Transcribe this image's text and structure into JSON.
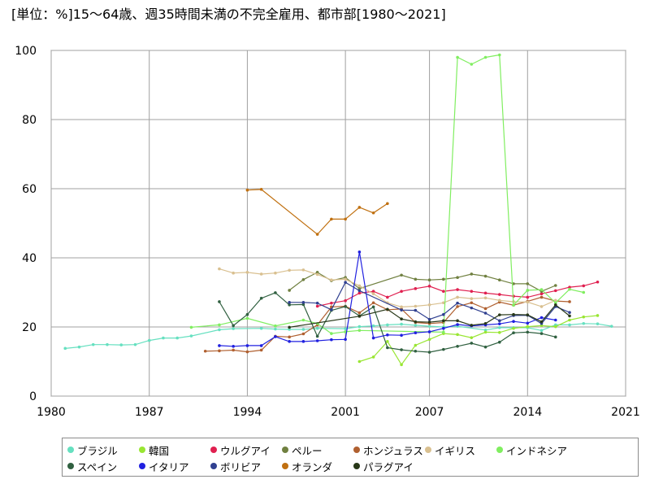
{
  "chart_data": {
    "type": "line",
    "title": "[単位：%]15～64歳、週35時間未満の不完全雇用、都市部[1980～2021]",
    "xlabel": "",
    "ylabel": "",
    "xlim": [
      1980,
      2021
    ],
    "ylim": [
      0,
      100
    ],
    "x_ticks": [
      1980,
      1987,
      1994,
      2001,
      2007,
      2014,
      2021
    ],
    "y_ticks": [
      0,
      20,
      40,
      60,
      80,
      100
    ],
    "grid": true,
    "legend_position": "bottom",
    "series": [
      {
        "name": "ブラジル",
        "color": "#66e0c0",
        "points": [
          [
            1981,
            13.8
          ],
          [
            1982,
            14.2
          ],
          [
            1983,
            14.9
          ],
          [
            1984,
            14.9
          ],
          [
            1985,
            14.8
          ],
          [
            1986,
            14.9
          ],
          [
            1987,
            16.1
          ],
          [
            1988,
            16.8
          ],
          [
            1989,
            16.8
          ],
          [
            1990,
            17.4
          ],
          [
            1992,
            19.2
          ],
          [
            1993,
            19.5
          ],
          [
            1995,
            19.6
          ],
          [
            1996,
            19.4
          ],
          [
            1997,
            19.3
          ],
          [
            1998,
            19.3
          ],
          [
            1999,
            19.6
          ],
          [
            2001,
            19.5
          ],
          [
            2002,
            20.1
          ],
          [
            2003,
            20.3
          ],
          [
            2004,
            20.6
          ],
          [
            2005,
            20.8
          ],
          [
            2006,
            20.5
          ],
          [
            2007,
            20.2
          ],
          [
            2008,
            20.0
          ],
          [
            2009,
            20.2
          ],
          [
            2011,
            19.1
          ],
          [
            2012,
            19.8
          ],
          [
            2013,
            19.8
          ],
          [
            2014,
            19.8
          ],
          [
            2015,
            19.0
          ],
          [
            2016,
            20.6
          ],
          [
            2017,
            20.6
          ],
          [
            2018,
            21.0
          ],
          [
            2019,
            20.9
          ],
          [
            2020,
            20.2
          ]
        ]
      },
      {
        "name": "韓国",
        "color": "#99e633",
        "points": [
          [
            2002,
            10.0
          ],
          [
            2003,
            11.3
          ],
          [
            2004,
            15.8
          ],
          [
            2005,
            9.1
          ],
          [
            2006,
            14.7
          ],
          [
            2007,
            16.4
          ],
          [
            2008,
            18.1
          ],
          [
            2009,
            17.8
          ],
          [
            2010,
            16.9
          ],
          [
            2011,
            18.5
          ],
          [
            2012,
            18.4
          ],
          [
            2013,
            19.6
          ],
          [
            2014,
            20.1
          ],
          [
            2015,
            20.4
          ],
          [
            2016,
            20.1
          ],
          [
            2017,
            22.0
          ],
          [
            2018,
            22.9
          ],
          [
            2019,
            23.3
          ]
        ]
      },
      {
        "name": "ウルグアイ",
        "color": "#e02050",
        "points": [
          [
            1999,
            26.0
          ],
          [
            2000,
            26.9
          ],
          [
            2001,
            27.6
          ],
          [
            2002,
            29.8
          ],
          [
            2003,
            30.3
          ],
          [
            2004,
            28.6
          ],
          [
            2005,
            30.3
          ],
          [
            2006,
            31.1
          ],
          [
            2007,
            31.8
          ],
          [
            2008,
            30.3
          ],
          [
            2009,
            30.8
          ],
          [
            2010,
            30.3
          ],
          [
            2011,
            29.8
          ],
          [
            2012,
            29.4
          ],
          [
            2013,
            28.9
          ],
          [
            2014,
            28.6
          ],
          [
            2015,
            29.6
          ],
          [
            2016,
            30.5
          ],
          [
            2017,
            31.5
          ],
          [
            2018,
            31.9
          ],
          [
            2019,
            33.0
          ]
        ]
      },
      {
        "name": "ペルー",
        "color": "#708040",
        "points": [
          [
            1997,
            30.6
          ],
          [
            1998,
            33.7
          ],
          [
            1999,
            35.8
          ],
          [
            2000,
            33.4
          ],
          [
            2001,
            34.3
          ],
          [
            2002,
            31.1
          ],
          [
            2005,
            35.0
          ],
          [
            2006,
            33.8
          ],
          [
            2007,
            33.6
          ],
          [
            2008,
            33.8
          ],
          [
            2009,
            34.3
          ],
          [
            2010,
            35.3
          ],
          [
            2011,
            34.7
          ],
          [
            2012,
            33.6
          ],
          [
            2013,
            32.5
          ],
          [
            2014,
            32.5
          ],
          [
            2015,
            30.3
          ],
          [
            2016,
            32.0
          ]
        ]
      },
      {
        "name": "ホンジュラス",
        "color": "#b06030",
        "points": [
          [
            1991,
            13.0
          ],
          [
            1992,
            13.1
          ],
          [
            1993,
            13.3
          ],
          [
            1994,
            12.8
          ],
          [
            1995,
            13.3
          ],
          [
            1996,
            17.3
          ],
          [
            1997,
            17.1
          ],
          [
            1998,
            18.0
          ],
          [
            1999,
            20.6
          ],
          [
            2000,
            25.8
          ],
          [
            2001,
            26.0
          ],
          [
            2002,
            24.1
          ],
          [
            2003,
            27.0
          ],
          [
            2004,
            25.0
          ],
          [
            2005,
            25.2
          ],
          [
            2006,
            21.3
          ],
          [
            2007,
            21.0
          ],
          [
            2008,
            21.3
          ],
          [
            2009,
            25.9
          ],
          [
            2010,
            27.0
          ],
          [
            2011,
            25.3
          ],
          [
            2012,
            27.2
          ],
          [
            2013,
            26.3
          ],
          [
            2014,
            27.4
          ],
          [
            2015,
            28.6
          ],
          [
            2016,
            27.5
          ],
          [
            2017,
            27.3
          ]
        ]
      },
      {
        "name": "イギリス",
        "color": "#d9c090",
        "points": [
          [
            1992,
            36.8
          ],
          [
            1993,
            35.6
          ],
          [
            1994,
            35.8
          ],
          [
            1995,
            35.3
          ],
          [
            1996,
            35.6
          ],
          [
            1997,
            36.4
          ],
          [
            1998,
            36.5
          ],
          [
            1999,
            35.2
          ],
          [
            2000,
            33.6
          ],
          [
            2001,
            33.8
          ],
          [
            2002,
            31.9
          ],
          [
            2003,
            29.6
          ],
          [
            2004,
            27.0
          ],
          [
            2005,
            25.8
          ],
          [
            2006,
            26.0
          ],
          [
            2007,
            26.4
          ],
          [
            2008,
            27.0
          ],
          [
            2009,
            28.6
          ],
          [
            2010,
            28.2
          ],
          [
            2011,
            28.4
          ],
          [
            2012,
            27.7
          ],
          [
            2013,
            27.3
          ],
          [
            2014,
            27.2
          ],
          [
            2015,
            25.9
          ],
          [
            2016,
            27.7
          ]
        ]
      },
      {
        "name": "インドネシア",
        "color": "#80ee60",
        "points": [
          [
            1990,
            19.9
          ],
          [
            1992,
            20.6
          ],
          [
            1994,
            22.5
          ],
          [
            1996,
            20.3
          ],
          [
            1998,
            22.0
          ],
          [
            1999,
            21.0
          ],
          [
            2000,
            18.1
          ],
          [
            2001,
            18.6
          ],
          [
            2002,
            19.0
          ],
          [
            2008,
            18.5
          ],
          [
            2009,
            98.0
          ],
          [
            2010,
            96.0
          ],
          [
            2011,
            98.0
          ],
          [
            2012,
            98.7
          ],
          [
            2013,
            26.3
          ],
          [
            2014,
            30.6
          ],
          [
            2015,
            30.8
          ],
          [
            2016,
            27.0
          ],
          [
            2017,
            30.9
          ],
          [
            2018,
            30.0
          ]
        ]
      },
      {
        "name": "スペイン",
        "color": "#306040",
        "points": [
          [
            1992,
            27.3
          ],
          [
            1993,
            20.4
          ],
          [
            1994,
            23.6
          ],
          [
            1995,
            28.3
          ],
          [
            1996,
            29.9
          ],
          [
            1997,
            26.4
          ],
          [
            1998,
            26.5
          ],
          [
            1999,
            17.3
          ],
          [
            2000,
            24.8
          ],
          [
            2001,
            25.9
          ],
          [
            2002,
            23.2
          ],
          [
            2003,
            25.8
          ],
          [
            2004,
            14.0
          ],
          [
            2005,
            13.4
          ],
          [
            2006,
            13.0
          ],
          [
            2007,
            12.7
          ],
          [
            2008,
            13.5
          ],
          [
            2009,
            14.4
          ],
          [
            2010,
            15.3
          ],
          [
            2011,
            14.2
          ],
          [
            2012,
            15.6
          ],
          [
            2013,
            18.3
          ],
          [
            2014,
            18.5
          ],
          [
            2015,
            18.1
          ],
          [
            2016,
            17.1
          ]
        ]
      },
      {
        "name": "イタリア",
        "color": "#2020e0",
        "points": [
          [
            1992,
            14.6
          ],
          [
            1993,
            14.4
          ],
          [
            1994,
            14.6
          ],
          [
            1995,
            14.6
          ],
          [
            1996,
            17.2
          ],
          [
            1997,
            15.8
          ],
          [
            1998,
            15.8
          ],
          [
            1999,
            16.0
          ],
          [
            2000,
            16.3
          ],
          [
            2001,
            16.4
          ],
          [
            2002,
            41.7
          ],
          [
            2003,
            16.8
          ],
          [
            2004,
            17.7
          ],
          [
            2005,
            17.6
          ],
          [
            2006,
            18.3
          ],
          [
            2007,
            18.6
          ],
          [
            2008,
            19.6
          ],
          [
            2009,
            20.7
          ],
          [
            2010,
            20.3
          ],
          [
            2011,
            20.6
          ],
          [
            2012,
            20.9
          ],
          [
            2013,
            21.6
          ],
          [
            2014,
            21.1
          ],
          [
            2015,
            22.7
          ],
          [
            2016,
            22.0
          ]
        ]
      },
      {
        "name": "ボリビア",
        "color": "#304090",
        "points": [
          [
            1997,
            27.1
          ],
          [
            1998,
            27.1
          ],
          [
            1999,
            26.9
          ],
          [
            2000,
            25.0
          ],
          [
            2001,
            32.9
          ],
          [
            2002,
            30.5
          ],
          [
            2005,
            24.9
          ],
          [
            2006,
            24.8
          ],
          [
            2007,
            22.2
          ],
          [
            2008,
            23.6
          ],
          [
            2009,
            26.9
          ],
          [
            2010,
            25.5
          ],
          [
            2011,
            24.0
          ],
          [
            2012,
            21.8
          ],
          [
            2013,
            23.3
          ],
          [
            2014,
            23.4
          ],
          [
            2015,
            21.0
          ],
          [
            2016,
            25.9
          ],
          [
            2017,
            24.2
          ]
        ]
      },
      {
        "name": "オランダ",
        "color": "#c07010",
        "points": [
          [
            1994,
            59.6
          ],
          [
            1995,
            59.8
          ],
          [
            1999,
            46.8
          ],
          [
            2000,
            51.2
          ],
          [
            2001,
            51.2
          ],
          [
            2002,
            54.6
          ],
          [
            2003,
            53.0
          ],
          [
            2004,
            55.7
          ]
        ]
      },
      {
        "name": "パラグアイ",
        "color": "#283818",
        "points": [
          [
            1997,
            19.9
          ],
          [
            2002,
            23.1
          ],
          [
            2004,
            25.1
          ],
          [
            2005,
            22.3
          ],
          [
            2006,
            21.5
          ],
          [
            2007,
            21.4
          ],
          [
            2008,
            21.8
          ],
          [
            2009,
            21.8
          ],
          [
            2010,
            20.5
          ],
          [
            2011,
            21.0
          ],
          [
            2012,
            23.5
          ],
          [
            2013,
            23.6
          ],
          [
            2014,
            23.5
          ],
          [
            2015,
            21.5
          ],
          [
            2016,
            26.4
          ],
          [
            2017,
            23.2
          ]
        ]
      }
    ]
  }
}
